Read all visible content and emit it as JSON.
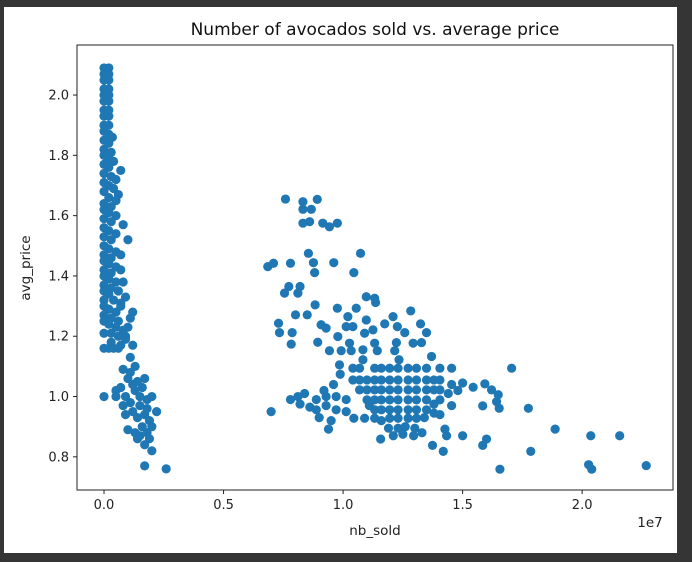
{
  "chart_data": {
    "type": "scatter",
    "title": "Number of avocados sold vs. average price",
    "xlabel": "nb_sold",
    "ylabel": "avg_price",
    "x_offset_text": "1e7",
    "xlim": [
      -0.113,
      2.38
    ],
    "ylim": [
      0.69,
      2.166
    ],
    "xticks": [
      0.0,
      0.5,
      1.0,
      1.5,
      2.0
    ],
    "xtick_labels": [
      "0.0",
      "0.5",
      "1.0",
      "1.5",
      "2.0"
    ],
    "yticks": [
      0.8,
      1.0,
      1.2,
      1.4,
      1.6,
      1.8,
      2.0
    ],
    "ytick_labels": [
      "0.8",
      "1.0",
      "1.2",
      "1.4",
      "1.6",
      "1.8",
      "2.0"
    ],
    "grid": false,
    "marker_color": "#1f77b4",
    "points": [
      [
        0.0,
        2.09
      ],
      [
        0.02,
        2.09
      ],
      [
        0.0,
        2.07
      ],
      [
        0.02,
        2.07
      ],
      [
        0.0,
        2.05
      ],
      [
        0.02,
        2.05
      ],
      [
        0.0,
        2.02
      ],
      [
        0.02,
        2.02
      ],
      [
        0.0,
        2.0
      ],
      [
        0.02,
        2.0
      ],
      [
        0.0,
        1.98
      ],
      [
        0.02,
        1.98
      ],
      [
        0.0,
        1.95
      ],
      [
        0.02,
        1.95
      ],
      [
        0.0,
        1.93
      ],
      [
        0.02,
        1.93
      ],
      [
        0.0,
        1.9
      ],
      [
        0.02,
        1.9
      ],
      [
        0.0,
        1.88
      ],
      [
        0.02,
        1.87
      ],
      [
        0.035,
        1.86
      ],
      [
        0.0,
        1.85
      ],
      [
        0.02,
        1.84
      ],
      [
        0.0,
        1.82
      ],
      [
        0.03,
        1.81
      ],
      [
        0.0,
        1.8
      ],
      [
        0.02,
        1.79
      ],
      [
        0.04,
        1.78
      ],
      [
        0.0,
        1.77
      ],
      [
        0.02,
        1.76
      ],
      [
        0.0,
        1.74
      ],
      [
        0.03,
        1.73
      ],
      [
        0.05,
        1.72
      ],
      [
        0.0,
        1.71
      ],
      [
        0.02,
        1.7
      ],
      [
        0.04,
        1.69
      ],
      [
        0.0,
        1.68
      ],
      [
        0.02,
        1.66
      ],
      [
        0.05,
        1.65
      ],
      [
        0.0,
        1.64
      ],
      [
        0.03,
        1.63
      ],
      [
        0.0,
        1.62
      ],
      [
        0.02,
        1.61
      ],
      [
        0.05,
        1.6
      ],
      [
        0.0,
        1.59
      ],
      [
        0.03,
        1.58
      ],
      [
        0.0,
        1.56
      ],
      [
        0.02,
        1.55
      ],
      [
        0.05,
        1.54
      ],
      [
        0.0,
        1.53
      ],
      [
        0.03,
        1.52
      ],
      [
        0.0,
        1.5
      ],
      [
        0.02,
        1.49
      ],
      [
        0.05,
        1.48
      ],
      [
        0.07,
        1.47
      ],
      [
        0.0,
        1.47
      ],
      [
        0.03,
        1.46
      ],
      [
        0.0,
        1.45
      ],
      [
        0.02,
        1.44
      ],
      [
        0.05,
        1.43
      ],
      [
        0.07,
        1.42
      ],
      [
        0.0,
        1.42
      ],
      [
        0.03,
        1.41
      ],
      [
        0.0,
        1.4
      ],
      [
        0.02,
        1.39
      ],
      [
        0.05,
        1.38
      ],
      [
        0.0,
        1.37
      ],
      [
        0.03,
        1.36
      ],
      [
        0.06,
        1.35
      ],
      [
        0.0,
        1.35
      ],
      [
        0.02,
        1.34
      ],
      [
        0.0,
        1.32
      ],
      [
        0.04,
        1.32
      ],
      [
        0.07,
        1.31
      ],
      [
        0.0,
        1.3
      ],
      [
        0.02,
        1.29
      ],
      [
        0.05,
        1.28
      ],
      [
        0.0,
        1.27
      ],
      [
        0.03,
        1.26
      ],
      [
        0.06,
        1.25
      ],
      [
        0.0,
        1.25
      ],
      [
        0.02,
        1.24
      ],
      [
        0.05,
        1.23
      ],
      [
        0.08,
        1.22
      ],
      [
        0.0,
        1.21
      ],
      [
        0.03,
        1.21
      ],
      [
        0.06,
        1.2
      ],
      [
        0.09,
        1.2
      ],
      [
        0.03,
        1.18
      ],
      [
        0.07,
        1.17
      ],
      [
        0.0,
        1.16
      ],
      [
        0.04,
        1.16
      ],
      [
        0.05,
        1.0
      ],
      [
        0.0,
        1.0
      ],
      [
        0.02,
        1.16
      ],
      [
        0.06,
        1.16
      ],
      [
        0.09,
        1.19
      ],
      [
        0.1,
        1.23
      ],
      [
        0.12,
        1.17
      ],
      [
        0.11,
        1.13
      ],
      [
        0.13,
        1.1
      ],
      [
        0.08,
        1.09
      ],
      [
        0.1,
        1.06
      ],
      [
        0.14,
        1.05
      ],
      [
        0.16,
        1.03
      ],
      [
        0.13,
        1.02
      ],
      [
        0.07,
        1.03
      ],
      [
        0.09,
        1.0
      ],
      [
        0.11,
        0.98
      ],
      [
        0.15,
        0.97
      ],
      [
        0.18,
        0.99
      ],
      [
        0.12,
        0.95
      ],
      [
        0.14,
        0.93
      ],
      [
        0.17,
        0.94
      ],
      [
        0.19,
        0.92
      ],
      [
        0.16,
        0.9
      ],
      [
        0.1,
        0.89
      ],
      [
        0.13,
        0.88
      ],
      [
        0.15,
        0.87
      ],
      [
        0.18,
        0.88
      ],
      [
        0.2,
        0.9
      ],
      [
        0.19,
        0.86
      ],
      [
        0.2,
        0.82
      ],
      [
        0.17,
        0.77
      ],
      [
        0.26,
        0.76
      ],
      [
        0.17,
        1.06
      ],
      [
        0.2,
        1.0
      ],
      [
        0.18,
        0.96
      ],
      [
        0.05,
        1.02
      ],
      [
        0.08,
        0.97
      ],
      [
        0.22,
        0.95
      ],
      [
        0.17,
        0.84
      ],
      [
        0.14,
        0.86
      ],
      [
        0.11,
        1.26
      ],
      [
        0.07,
        1.3
      ],
      [
        0.09,
        1.33
      ],
      [
        0.12,
        1.28
      ],
      [
        0.08,
        1.38
      ],
      [
        0.1,
        1.52
      ],
      [
        0.08,
        1.57
      ],
      [
        0.06,
        1.67
      ],
      [
        0.07,
        1.75
      ],
      [
        0.11,
        1.08
      ],
      [
        0.12,
        1.04
      ],
      [
        0.09,
        0.94
      ],
      [
        0.15,
        1.0
      ],
      [
        0.759,
        1.655
      ],
      [
        0.832,
        1.646
      ],
      [
        0.892,
        1.654
      ],
      [
        0.832,
        1.621
      ],
      [
        0.867,
        1.621
      ],
      [
        0.832,
        1.575
      ],
      [
        0.86,
        1.58
      ],
      [
        0.915,
        1.575
      ],
      [
        0.943,
        1.563
      ],
      [
        0.976,
        1.575
      ],
      [
        0.855,
        1.475
      ],
      [
        1.073,
        1.475
      ],
      [
        0.685,
        1.431
      ],
      [
        0.709,
        1.442
      ],
      [
        0.78,
        1.442
      ],
      [
        0.876,
        1.444
      ],
      [
        0.961,
        1.444
      ],
      [
        0.881,
        1.411
      ],
      [
        1.045,
        1.411
      ],
      [
        0.773,
        1.365
      ],
      [
        0.755,
        1.343
      ],
      [
        0.82,
        1.365
      ],
      [
        0.811,
        1.343
      ],
      [
        1.097,
        1.331
      ],
      [
        1.132,
        1.326
      ],
      [
        1.136,
        1.312
      ],
      [
        0.883,
        1.304
      ],
      [
        0.801,
        1.271
      ],
      [
        0.85,
        1.271
      ],
      [
        0.976,
        1.293
      ],
      [
        1.055,
        1.293
      ],
      [
        1.283,
        1.284
      ],
      [
        0.73,
        1.243
      ],
      [
        0.734,
        1.212
      ],
      [
        0.787,
        1.212
      ],
      [
        0.783,
        1.174
      ],
      [
        0.894,
        1.18
      ],
      [
        0.943,
        1.152
      ],
      [
        1.705,
        1.094
      ],
      [
        1.584,
        0.969
      ],
      [
        1.775,
        0.961
      ],
      [
        1.887,
        0.892
      ],
      [
        2.036,
        0.87
      ],
      [
        2.157,
        0.87
      ],
      [
        1.785,
        0.818
      ],
      [
        1.656,
        0.759
      ],
      [
        2.027,
        0.774
      ],
      [
        2.04,
        0.759
      ],
      [
        2.268,
        0.771
      ],
      [
        1.5,
        0.87
      ],
      [
        1.374,
        0.838
      ],
      [
        1.419,
        0.818
      ],
      [
        1.584,
        0.838
      ],
      [
        1.6,
        0.859
      ],
      [
        1.157,
        0.859
      ],
      [
        0.699,
        0.95
      ],
      [
        0.939,
        0.892
      ],
      [
        1.426,
        0.892
      ],
      [
        1.433,
        0.87
      ],
      [
        1.544,
        1.031
      ],
      [
        1.593,
        1.042
      ],
      [
        1.621,
        1.022
      ],
      [
        1.642,
        0.983
      ],
      [
        1.653,
        0.961
      ],
      [
        1.649,
        1.006
      ],
      [
        1.37,
        1.133
      ],
      [
        1.349,
        1.212
      ],
      [
        1.324,
        1.241
      ],
      [
        1.209,
        1.265
      ],
      [
        1.174,
        1.241
      ],
      [
        1.227,
        1.232
      ],
      [
        1.258,
        1.212
      ],
      [
        1.293,
        1.177
      ],
      [
        1.328,
        1.179
      ],
      [
        1.223,
        1.179
      ],
      [
        1.216,
        1.152
      ],
      [
        1.097,
        1.254
      ],
      [
        1.02,
        1.265
      ],
      [
        0.908,
        1.238
      ],
      [
        0.929,
        1.227
      ],
      [
        0.978,
        1.199
      ],
      [
        1.013,
        1.232
      ],
      [
        1.041,
        1.232
      ],
      [
        1.09,
        1.21
      ],
      [
        1.125,
        1.221
      ],
      [
        1.132,
        1.177
      ],
      [
        1.027,
        1.177
      ],
      [
        0.992,
        1.152
      ],
      [
        1.034,
        1.152
      ],
      [
        1.083,
        1.155
      ],
      [
        1.143,
        1.152
      ],
      [
        1.083,
        1.122
      ],
      [
        0.985,
        1.105
      ],
      [
        0.988,
        1.074
      ],
      [
        1.234,
        1.122
      ],
      [
        1.041,
        1.094
      ],
      [
        1.069,
        1.094
      ],
      [
        1.132,
        1.094
      ],
      [
        1.16,
        1.094
      ],
      [
        1.195,
        1.094
      ],
      [
        1.23,
        1.094
      ],
      [
        1.272,
        1.094
      ],
      [
        1.307,
        1.094
      ],
      [
        1.349,
        1.094
      ],
      [
        1.405,
        1.094
      ],
      [
        1.454,
        1.094
      ],
      [
        1.041,
        1.055
      ],
      [
        1.069,
        1.055
      ],
      [
        1.1,
        1.055
      ],
      [
        1.132,
        1.055
      ],
      [
        1.16,
        1.055
      ],
      [
        1.195,
        1.055
      ],
      [
        1.23,
        1.055
      ],
      [
        1.272,
        1.055
      ],
      [
        1.307,
        1.055
      ],
      [
        1.349,
        1.055
      ],
      [
        1.38,
        1.055
      ],
      [
        1.405,
        1.055
      ],
      [
        1.454,
        1.04
      ],
      [
        1.5,
        1.045
      ],
      [
        1.069,
        1.022
      ],
      [
        1.1,
        1.022
      ],
      [
        1.132,
        1.022
      ],
      [
        1.16,
        1.022
      ],
      [
        1.195,
        1.022
      ],
      [
        1.23,
        1.022
      ],
      [
        1.272,
        1.022
      ],
      [
        1.307,
        1.022
      ],
      [
        1.349,
        1.022
      ],
      [
        1.38,
        1.022
      ],
      [
        1.405,
        1.022
      ],
      [
        1.44,
        1.01
      ],
      [
        1.48,
        1.02
      ],
      [
        0.811,
        1.0
      ],
      [
        0.839,
        1.01
      ],
      [
        0.888,
        0.99
      ],
      [
        0.929,
        1.0
      ],
      [
        0.971,
        1.0
      ],
      [
        1.013,
        0.99
      ],
      [
        1.1,
        0.989
      ],
      [
        1.132,
        0.989
      ],
      [
        1.16,
        0.989
      ],
      [
        1.195,
        0.989
      ],
      [
        1.23,
        0.989
      ],
      [
        1.272,
        0.989
      ],
      [
        1.307,
        0.989
      ],
      [
        1.349,
        0.989
      ],
      [
        1.38,
        0.975
      ],
      [
        1.405,
        0.989
      ],
      [
        1.454,
        0.97
      ],
      [
        0.78,
        0.99
      ],
      [
        0.82,
        0.975
      ],
      [
        0.861,
        0.965
      ],
      [
        0.888,
        0.956
      ],
      [
        0.929,
        0.97
      ],
      [
        0.971,
        0.956
      ],
      [
        1.013,
        0.95
      ],
      [
        1.132,
        0.956
      ],
      [
        1.16,
        0.956
      ],
      [
        1.195,
        0.956
      ],
      [
        1.23,
        0.956
      ],
      [
        1.272,
        0.956
      ],
      [
        1.307,
        0.956
      ],
      [
        1.349,
        0.956
      ],
      [
        1.38,
        0.945
      ],
      [
        1.405,
        0.94
      ],
      [
        0.9,
        0.93
      ],
      [
        0.95,
        0.92
      ],
      [
        1.045,
        0.928
      ],
      [
        1.09,
        0.928
      ],
      [
        1.132,
        0.928
      ],
      [
        1.16,
        0.92
      ],
      [
        1.195,
        0.928
      ],
      [
        1.23,
        0.928
      ],
      [
        1.272,
        0.928
      ],
      [
        1.307,
        0.928
      ],
      [
        1.34,
        0.93
      ],
      [
        1.19,
        0.895
      ],
      [
        1.23,
        0.895
      ],
      [
        1.26,
        0.9
      ],
      [
        1.3,
        0.895
      ],
      [
        1.21,
        0.87
      ],
      [
        1.25,
        0.875
      ],
      [
        1.295,
        0.87
      ],
      [
        1.33,
        0.88
      ],
      [
        1.11,
        0.97
      ],
      [
        0.96,
        1.04
      ],
      [
        0.92,
        1.02
      ]
    ]
  }
}
